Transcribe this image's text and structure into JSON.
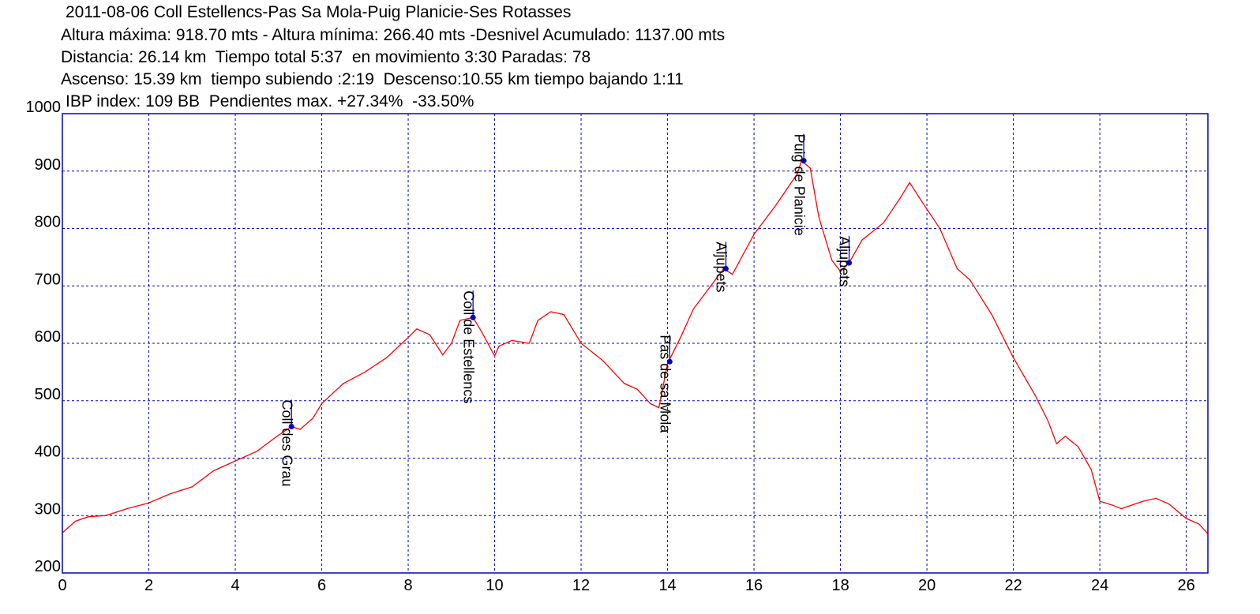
{
  "header": {
    "line1": "2011-08-06 Coll Estellencs-Pas Sa Mola-Puig Planicie-Ses Rotasses",
    "line2": "Altura máxima: 918.70 mts - Altura mínima: 266.40 mts -Desnivel Acumulado: 1137.00 mts",
    "line3": "Distancia: 26.14 km  Tiempo total 5:37  en movimiento 3:30 Paradas: 78",
    "line4": "Ascenso: 15.39 km  tiempo subiendo :2:19  Descenso:10.55 km tiempo bajando 1:11",
    "line5": "IBP index: 109 BB  Pendientes max. +27.34%  -33.50%"
  },
  "chart_data": {
    "type": "line",
    "title": "2011-08-06 Coll Estellencs-Pas Sa Mola-Puig Planicie-Ses Rotasses",
    "xlabel": "",
    "ylabel": "",
    "xlim": [
      0,
      26.5
    ],
    "ylim": [
      200,
      1000
    ],
    "x_ticks": [
      0,
      2,
      4,
      6,
      8,
      10,
      12,
      14,
      16,
      18,
      20,
      22,
      24,
      26
    ],
    "y_ticks": [
      200,
      300,
      400,
      500,
      600,
      700,
      800,
      900,
      1000
    ],
    "grid": true,
    "line_color": "#ff0000",
    "frame_color": "#0000cc",
    "grid_color": "#0000cc",
    "marker_color": "#0000cc",
    "series": [
      {
        "x": [
          0,
          0.3,
          0.6,
          1,
          1.5,
          2,
          2.5,
          3,
          3.5,
          4,
          4.5,
          5,
          5.3,
          5.5,
          5.8,
          6,
          6.5,
          7,
          7.5,
          8,
          8.2,
          8.5,
          8.8,
          9,
          9.2,
          9.5,
          9.7,
          10,
          10.1,
          10.4,
          10.8,
          11,
          11.3,
          11.6,
          12,
          12.5,
          13,
          13.3,
          13.6,
          13.8,
          14,
          14.3,
          14.6,
          15,
          15.3,
          15.5,
          16,
          16.5,
          17,
          17.1,
          17.3,
          17.5,
          17.8,
          18,
          18.2,
          18.5,
          19,
          19.4,
          19.6,
          19.9,
          20.3,
          20.7,
          21,
          21.5,
          22,
          22.5,
          22.8,
          23,
          23.2,
          23.5,
          23.8,
          24,
          24.3,
          24.5,
          25,
          25.3,
          25.6,
          26,
          26.3,
          26.5
        ],
        "y": [
          270,
          290,
          298,
          300,
          312,
          322,
          338,
          350,
          378,
          395,
          412,
          440,
          455,
          450,
          470,
          495,
          530,
          550,
          575,
          610,
          625,
          615,
          580,
          600,
          640,
          645,
          620,
          578,
          595,
          605,
          600,
          640,
          655,
          650,
          600,
          570,
          530,
          520,
          495,
          488,
          565,
          610,
          660,
          700,
          730,
          720,
          790,
          840,
          895,
          918,
          905,
          820,
          745,
          725,
          740,
          780,
          810,
          855,
          880,
          845,
          800,
          730,
          710,
          650,
          575,
          510,
          465,
          425,
          438,
          420,
          380,
          325,
          318,
          312,
          325,
          330,
          320,
          295,
          285,
          268
        ]
      }
    ],
    "annotations": [
      {
        "label": "Coll des Grau",
        "x": 5.3,
        "y": 455
      },
      {
        "label": "Coll de Estellencs",
        "x": 9.5,
        "y": 645
      },
      {
        "label": "Pas de sa Mola",
        "x": 14.05,
        "y": 568
      },
      {
        "label": "Aljupets",
        "x": 15.35,
        "y": 730
      },
      {
        "label": "Puig de Planicie",
        "x": 17.15,
        "y": 918
      },
      {
        "label": "Aljupets",
        "x": 18.2,
        "y": 740
      }
    ]
  }
}
